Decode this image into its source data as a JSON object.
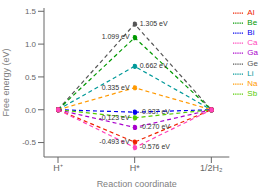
{
  "chart_data": {
    "type": "line",
    "xlabel": "Reaction coordinate",
    "ylabel": "Free energy (eV)",
    "categories": [
      "H⁺",
      "H*",
      "1/2H₂"
    ],
    "series": [
      {
        "name": "Ge",
        "color": "#555555",
        "values": [
          0,
          1.305,
          0
        ],
        "value_labels": [
          null,
          "1.305 eV",
          null
        ]
      },
      {
        "name": "Be",
        "color": "#009900",
        "values": [
          0,
          1.099,
          0
        ],
        "value_labels": [
          null,
          "1.099 eV",
          null
        ]
      },
      {
        "name": "Li",
        "color": "#009999",
        "values": [
          0,
          0.662,
          0
        ],
        "value_labels": [
          null,
          "0.662 eV",
          null
        ]
      },
      {
        "name": "Na",
        "color": "#ff9900",
        "values": [
          0,
          0.335,
          0
        ],
        "value_labels": [
          null,
          "0.335 eV",
          null
        ]
      },
      {
        "name": "Bi",
        "color": "#0000ee",
        "values": [
          0,
          -0.037,
          0
        ],
        "value_labels": [
          null,
          "-0.037 eV",
          null
        ]
      },
      {
        "name": "Sb",
        "color": "#55cc00",
        "values": [
          0,
          -0.123,
          0
        ],
        "value_labels": [
          null,
          "-0.123 eV",
          null
        ]
      },
      {
        "name": "Ga",
        "color": "#aa00cc",
        "values": [
          0,
          -0.27,
          0
        ],
        "value_labels": [
          null,
          "-0.270 eV",
          null
        ]
      },
      {
        "name": "Al",
        "color": "#ee2200",
        "values": [
          0,
          -0.493,
          0
        ],
        "value_labels": [
          null,
          "-0.493 eV",
          null
        ]
      },
      {
        "name": "Ca",
        "color": "#ff44bb",
        "values": [
          0,
          -0.576,
          0
        ],
        "value_labels": [
          null,
          "-0.576 eV",
          null
        ]
      }
    ],
    "ylim": [
      -0.72,
      1.55
    ],
    "yticks": [
      -0.5,
      {
        "value": 0,
        "label": "0.0"
      },
      0.5,
      {
        "value": 1,
        "label": "1.0"
      },
      1.5
    ],
    "legend": "upper right",
    "data_labels": true
  }
}
